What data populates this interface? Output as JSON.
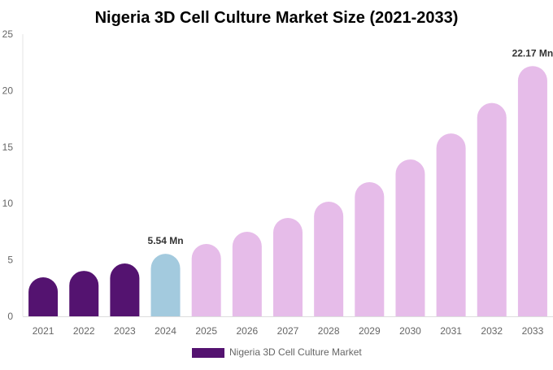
{
  "chart_data": {
    "type": "bar",
    "title": "Nigeria 3D Cell Culture Market Size (2021-2033)",
    "categories": [
      "2021",
      "2022",
      "2023",
      "2024",
      "2025",
      "2026",
      "2027",
      "2028",
      "2029",
      "2030",
      "2031",
      "2032",
      "2033"
    ],
    "series": [
      {
        "name": "Nigeria 3D Cell Culture Market",
        "values": [
          3.46,
          4.03,
          4.68,
          5.54,
          6.41,
          7.49,
          8.72,
          10.16,
          11.89,
          13.9,
          16.2,
          18.9,
          22.17
        ]
      }
    ],
    "data_labels": [
      {
        "category": "2024",
        "text": "5.54 Mn"
      },
      {
        "category": "2033",
        "text": "22.17 Mn"
      }
    ],
    "ylim": [
      0,
      25
    ],
    "yticks": [
      0,
      5,
      10,
      15,
      20,
      25
    ],
    "grid": false,
    "legend": "bottom",
    "colors": {
      "historical": "#541370",
      "base_year": "#a3cade",
      "forecast": "#e6bce9"
    },
    "color_groups": [
      "historical",
      "historical",
      "historical",
      "base_year",
      "forecast",
      "forecast",
      "forecast",
      "forecast",
      "forecast",
      "forecast",
      "forecast",
      "forecast",
      "forecast"
    ]
  }
}
